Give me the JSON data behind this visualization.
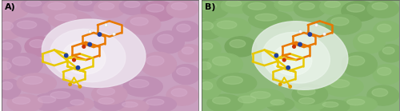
{
  "figsize": [
    5.0,
    1.39
  ],
  "dpi": 100,
  "panel_A_label": "A)",
  "panel_B_label": "B)",
  "label_color": "#000000",
  "label_fontsize": 8,
  "label_fontweight": "bold",
  "border_color": "#555555",
  "border_linewidth": 0.5,
  "image_A_bounds": [
    0.003,
    0.0,
    0.495,
    1.0
  ],
  "image_B_bounds": [
    0.503,
    0.0,
    0.497,
    1.0
  ],
  "bg_color_A": "#c9a0c0",
  "bg_color_B": "#8cb878",
  "bump_colors_A": [
    "#c090b8",
    "#c898b8",
    "#c890b5",
    "#bf88b0",
    "#c898b8",
    "#c090b0",
    "#c898b8",
    "#c898b8",
    "#bf88b0",
    "#c090b0",
    "#c898b8",
    "#bf88ae",
    "#c898b8",
    "#bf88b0",
    "#c090b0",
    "#d0a8c8",
    "#d0a8c8",
    "#d0a8c8",
    "#d0a8c8",
    "#d0a8c8",
    "#b878a8",
    "#b878a8",
    "#b878a8",
    "#b878a8",
    "#b878a8"
  ],
  "bump_colors_B": [
    "#80b068",
    "#88b870",
    "#80b068",
    "#78a860",
    "#88b870",
    "#80b068",
    "#88b870",
    "#88b870",
    "#78a860",
    "#80b068",
    "#88b870",
    "#78a860",
    "#88b870",
    "#78a860",
    "#80b068",
    "#98c880",
    "#98c880",
    "#98c880",
    "#98c880",
    "#98c880",
    "#689858",
    "#689858",
    "#689858",
    "#689858",
    "#689858"
  ],
  "pocket_color_A": "#e8e0ec",
  "pocket_color_B": "#dce8d8",
  "orange": "#E87800",
  "yellow": "#E8C800",
  "blue": "#2040A0",
  "red": "#C83000",
  "white": "#F8F8F8"
}
